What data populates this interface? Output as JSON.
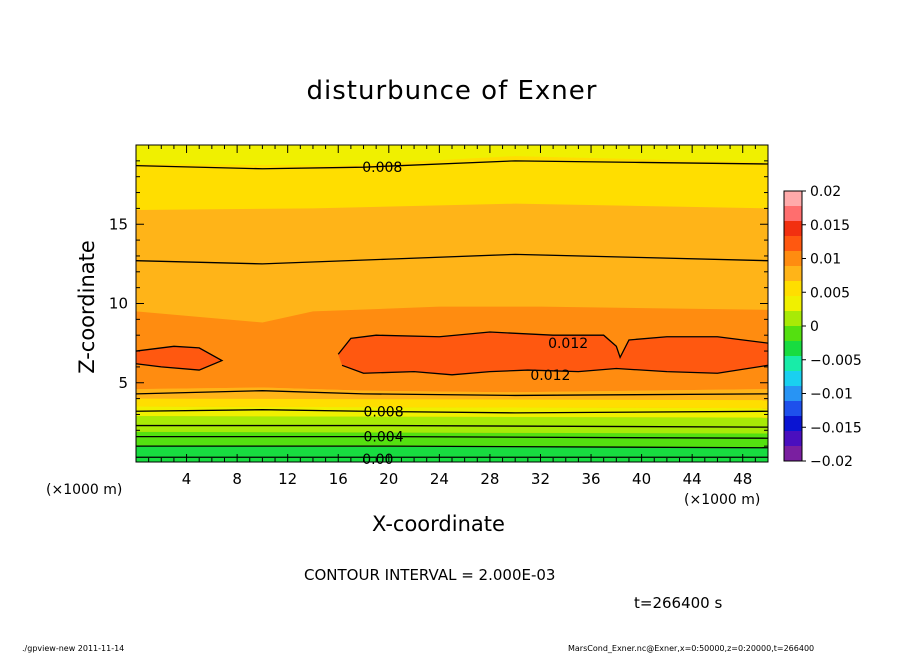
{
  "chart_data": {
    "type": "contour",
    "title": "disturbunce of Exner",
    "xlabel": "X-coordinate",
    "ylabel": "Z-coordinate",
    "x_unit": "(×1000 m)",
    "x_range": [
      0,
      50
    ],
    "z_range": [
      0,
      20
    ],
    "x_ticks": [
      4,
      8,
      12,
      16,
      20,
      24,
      28,
      32,
      36,
      40,
      44,
      48
    ],
    "y_ticks": [
      5,
      10,
      15
    ],
    "contour_interval_label": "CONTOUR INTERVAL = 2.000E-03",
    "time_label": "t=266400 s",
    "contour_labels": [
      {
        "text": "0.008",
        "x": 17.9,
        "z": 18.6
      },
      {
        "text": "0.012",
        "x": 32.6,
        "z": 7.5
      },
      {
        "text": "0.012",
        "x": 31.2,
        "z": 5.5
      },
      {
        "text": "0.008",
        "x": 18.0,
        "z": 3.2
      },
      {
        "text": "0.004",
        "x": 18.0,
        "z": 1.6
      },
      {
        "text": "0.00",
        "x": 17.9,
        "z": 0.2
      }
    ],
    "colorbar": {
      "ticks": [
        "0.02",
        "0.015",
        "0.01",
        "0.005",
        "0",
        "−0.005",
        "−0.01",
        "−0.015",
        "−0.02"
      ],
      "range": [
        -0.02,
        0.02
      ],
      "colors": [
        "#7a1fa0",
        "#4a0fbe",
        "#0a14d2",
        "#1e50ec",
        "#2894f4",
        "#1ad0f0",
        "#18eca8",
        "#18dc40",
        "#54e010",
        "#a8ea06",
        "#f0f000",
        "#ffde00",
        "#ffb418",
        "#ff8c10",
        "#ff5810",
        "#f23010",
        "#ff6e6e",
        "#ffaaaa"
      ]
    }
  },
  "labels": {
    "footer_left": "./gpview-new   2011-11-14",
    "footer_right": "MarsCond_Exner.nc@Exner,x=0:50000,z=0:20000,t=266400"
  }
}
